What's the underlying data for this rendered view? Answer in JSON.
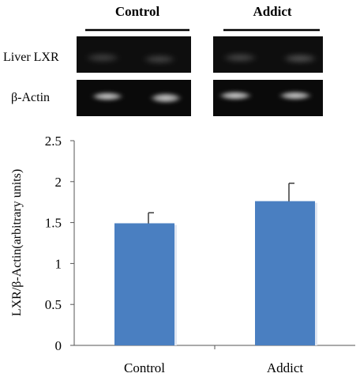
{
  "blot": {
    "groups": [
      "Control",
      "Addict"
    ],
    "rows": [
      {
        "label": "Liver LXR",
        "bands": [
          0.22,
          0.24,
          0.25,
          0.3
        ]
      },
      {
        "label": "β-Actin",
        "bands": [
          0.8,
          0.78,
          0.82,
          0.8
        ]
      }
    ]
  },
  "chart_data": {
    "type": "bar",
    "categories": [
      "Control",
      "Addict"
    ],
    "values": [
      1.49,
      1.76
    ],
    "error": [
      0.13,
      0.22
    ],
    "title": "",
    "xlabel": "",
    "ylabel": "LXR/β-Actin(arbitrary units)",
    "ylim": [
      0,
      2.5
    ],
    "yticks": [
      "0",
      "0.5",
      "1",
      "1.5",
      "2",
      "2.5"
    ],
    "grid": false,
    "bar_color": "#4a7fc1"
  }
}
